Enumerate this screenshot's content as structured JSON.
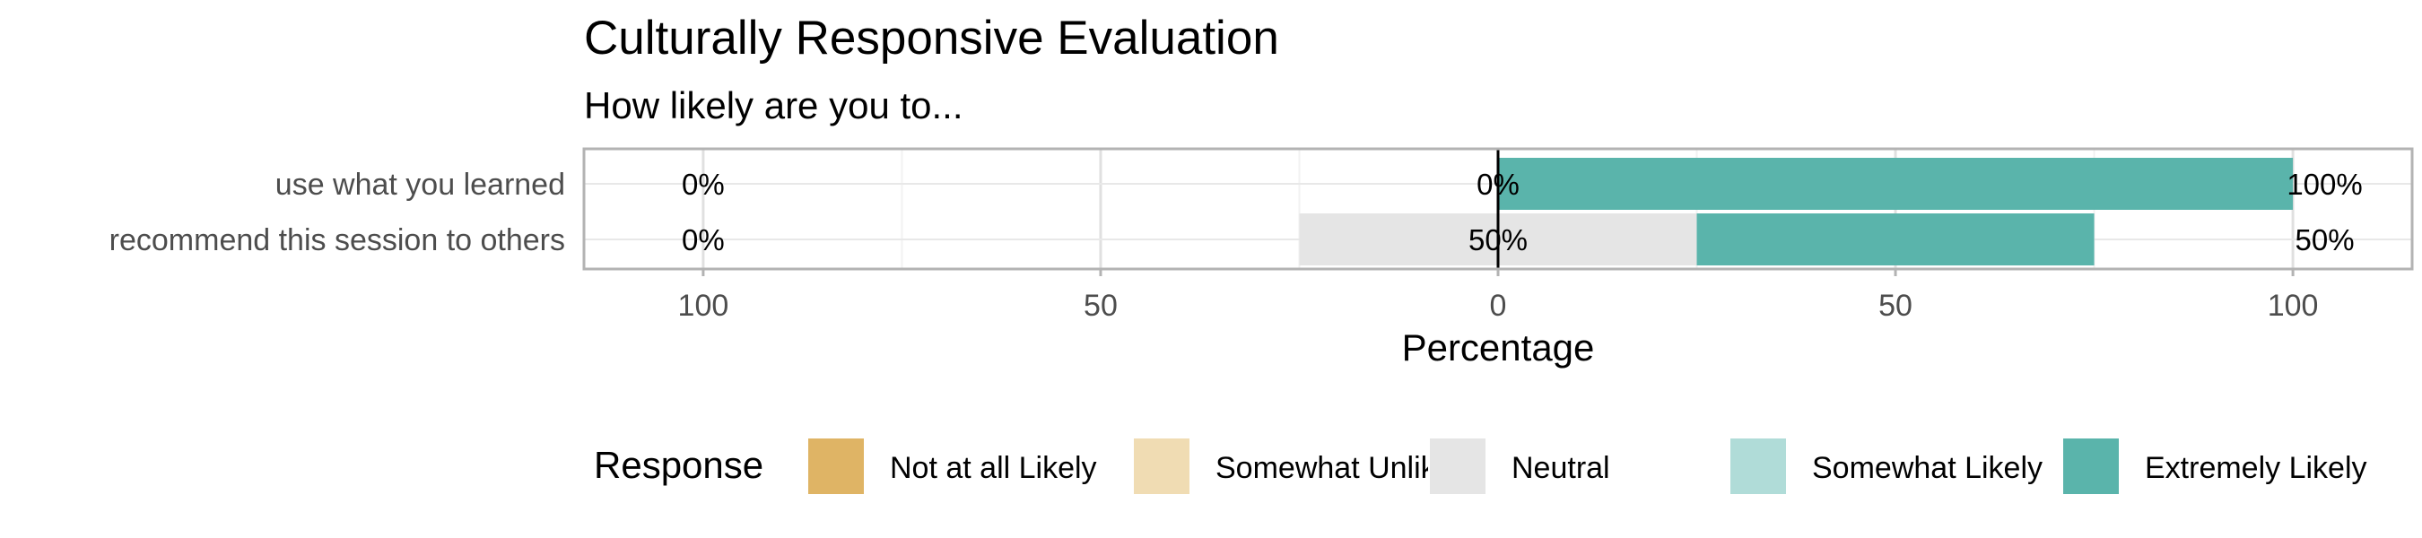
{
  "chart_data": {
    "type": "bar",
    "orientation": "horizontal-diverging",
    "title": "Culturally Responsive Evaluation",
    "subtitle": "How likely are you to...",
    "xlabel": "Percentage",
    "xlim": [
      -115,
      115
    ],
    "x_ticks": [
      -100,
      -50,
      0,
      50,
      100
    ],
    "x_tick_labels": [
      "100",
      "50",
      "0",
      "50",
      "100"
    ],
    "grid": true,
    "categories": [
      "use what you learned",
      "recommend this session to others"
    ],
    "series": [
      {
        "name": "Not at all Likely",
        "color": "#dfb465",
        "values": [
          0,
          0
        ]
      },
      {
        "name": "Somewhat Unlikely",
        "color": "#f0dcb3",
        "values": [
          0,
          0
        ]
      },
      {
        "name": "Neutral",
        "color": "#e5e5e5",
        "values": [
          0,
          50
        ]
      },
      {
        "name": "Somewhat Likely",
        "color": "#b0dcd8",
        "values": [
          0,
          0
        ]
      },
      {
        "name": "Extremely Likely",
        "color": "#5ab4ab",
        "values": [
          100,
          50
        ]
      }
    ],
    "percent_labels": [
      {
        "left": "0%",
        "center": "0%",
        "right": "100%"
      },
      {
        "left": "0%",
        "center": "50%",
        "right": "50%"
      }
    ],
    "legend": {
      "title": "Response",
      "position": "bottom"
    }
  }
}
